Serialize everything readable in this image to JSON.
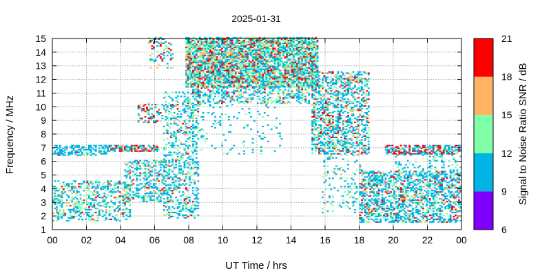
{
  "chart_data": {
    "type": "heatmap",
    "title": "2025-01-31",
    "xlabel": "UT Time / hrs",
    "ylabel": "Frequency / MHz",
    "xlim": [
      0,
      24
    ],
    "ylim": [
      1,
      15
    ],
    "x_tick_labels": [
      "00",
      "02",
      "04",
      "06",
      "08",
      "10",
      "12",
      "14",
      "16",
      "18",
      "20",
      "22",
      "00"
    ],
    "y_tick_labels": [
      "1",
      "2",
      "3",
      "4",
      "5",
      "6",
      "7",
      "8",
      "9",
      "10",
      "11",
      "12",
      "13",
      "14",
      "15"
    ],
    "grid": true,
    "colorbar": {
      "label": "Signal to Noise Ratio SNR / dB",
      "tick_labels": [
        "6",
        "9",
        "12",
        "15",
        "18",
        "21"
      ],
      "bands": [
        {
          "min": 6,
          "max": 9,
          "color": "#8000ff"
        },
        {
          "min": 9,
          "max": 12,
          "color": "#00b4e6"
        },
        {
          "min": 12,
          "max": 15,
          "color": "#80ffa8"
        },
        {
          "min": 15,
          "max": 18,
          "color": "#ffb464"
        },
        {
          "min": 18,
          "max": 21,
          "color": "#ff0000"
        }
      ]
    },
    "regions": [
      {
        "t": [
          0.0,
          3.2
        ],
        "f": [
          6.4,
          7.1
        ],
        "density": 0.55,
        "snr": [
          [
            10,
            0.82
          ],
          [
            13,
            0.1
          ],
          [
            16,
            0.04
          ],
          [
            19,
            0.04
          ]
        ]
      },
      {
        "t": [
          3.2,
          6.2
        ],
        "f": [
          6.7,
          7.1
        ],
        "density": 0.7,
        "snr": [
          [
            10,
            0.55
          ],
          [
            13,
            0.1
          ],
          [
            16,
            0.1
          ],
          [
            19,
            0.25
          ]
        ]
      },
      {
        "t": [
          0.0,
          4.6
        ],
        "f": [
          1.6,
          4.6
        ],
        "density": 0.35,
        "snr": [
          [
            10,
            0.55
          ],
          [
            13,
            0.3
          ],
          [
            16,
            0.1
          ],
          [
            19,
            0.05
          ]
        ]
      },
      {
        "t": [
          4.2,
          6.8
        ],
        "f": [
          3.0,
          6.0
        ],
        "density": 0.4,
        "snr": [
          [
            10,
            0.6
          ],
          [
            13,
            0.25
          ],
          [
            16,
            0.1
          ],
          [
            19,
            0.05
          ]
        ]
      },
      {
        "t": [
          5.0,
          6.4
        ],
        "f": [
          8.8,
          10.2
        ],
        "density": 0.25,
        "snr": [
          [
            10,
            0.4
          ],
          [
            13,
            0.1
          ],
          [
            16,
            0.1
          ],
          [
            19,
            0.4
          ]
        ]
      },
      {
        "t": [
          5.6,
          7.0
        ],
        "f": [
          12.8,
          15.0
        ],
        "density": 0.2,
        "snr": [
          [
            10,
            0.5
          ],
          [
            13,
            0.2
          ],
          [
            16,
            0.1
          ],
          [
            19,
            0.2
          ]
        ]
      },
      {
        "t": [
          6.5,
          8.5
        ],
        "f": [
          1.8,
          11.0
        ],
        "density": 0.3,
        "snr": [
          [
            10,
            0.6
          ],
          [
            13,
            0.3
          ],
          [
            16,
            0.05
          ],
          [
            19,
            0.05
          ]
        ]
      },
      {
        "t": [
          7.8,
          15.5
        ],
        "f": [
          11.4,
          15.0
        ],
        "density": 0.78,
        "snr": [
          [
            10,
            0.4
          ],
          [
            13,
            0.3
          ],
          [
            16,
            0.15
          ],
          [
            19,
            0.15
          ]
        ]
      },
      {
        "t": [
          8.2,
          15.0
        ],
        "f": [
          10.2,
          11.4
        ],
        "density": 0.4,
        "snr": [
          [
            10,
            0.6
          ],
          [
            13,
            0.25
          ],
          [
            16,
            0.1
          ],
          [
            19,
            0.05
          ]
        ]
      },
      {
        "t": [
          8.0,
          13.5
        ],
        "f": [
          6.5,
          10.2
        ],
        "density": 0.06,
        "snr": [
          [
            10,
            0.8
          ],
          [
            13,
            0.2
          ]
        ]
      },
      {
        "t": [
          15.2,
          18.6
        ],
        "f": [
          6.5,
          12.5
        ],
        "density": 0.45,
        "snr": [
          [
            10,
            0.55
          ],
          [
            13,
            0.2
          ],
          [
            16,
            0.12
          ],
          [
            19,
            0.13
          ]
        ]
      },
      {
        "t": [
          15.8,
          18.2
        ],
        "f": [
          2.2,
          6.5
        ],
        "density": 0.12,
        "snr": [
          [
            10,
            0.6
          ],
          [
            13,
            0.3
          ],
          [
            16,
            0.1
          ]
        ]
      },
      {
        "t": [
          18.0,
          24.0
        ],
        "f": [
          1.5,
          5.2
        ],
        "density": 0.5,
        "snr": [
          [
            10,
            0.6
          ],
          [
            13,
            0.2
          ],
          [
            16,
            0.08
          ],
          [
            19,
            0.12
          ]
        ]
      },
      {
        "t": [
          19.5,
          24.0
        ],
        "f": [
          6.5,
          7.1
        ],
        "density": 0.6,
        "snr": [
          [
            10,
            0.55
          ],
          [
            13,
            0.1
          ],
          [
            16,
            0.05
          ],
          [
            19,
            0.3
          ]
        ]
      },
      {
        "t": [
          20.0,
          24.0
        ],
        "f": [
          5.2,
          6.5
        ],
        "density": 0.12,
        "snr": [
          [
            10,
            0.75
          ],
          [
            13,
            0.25
          ]
        ]
      }
    ]
  }
}
